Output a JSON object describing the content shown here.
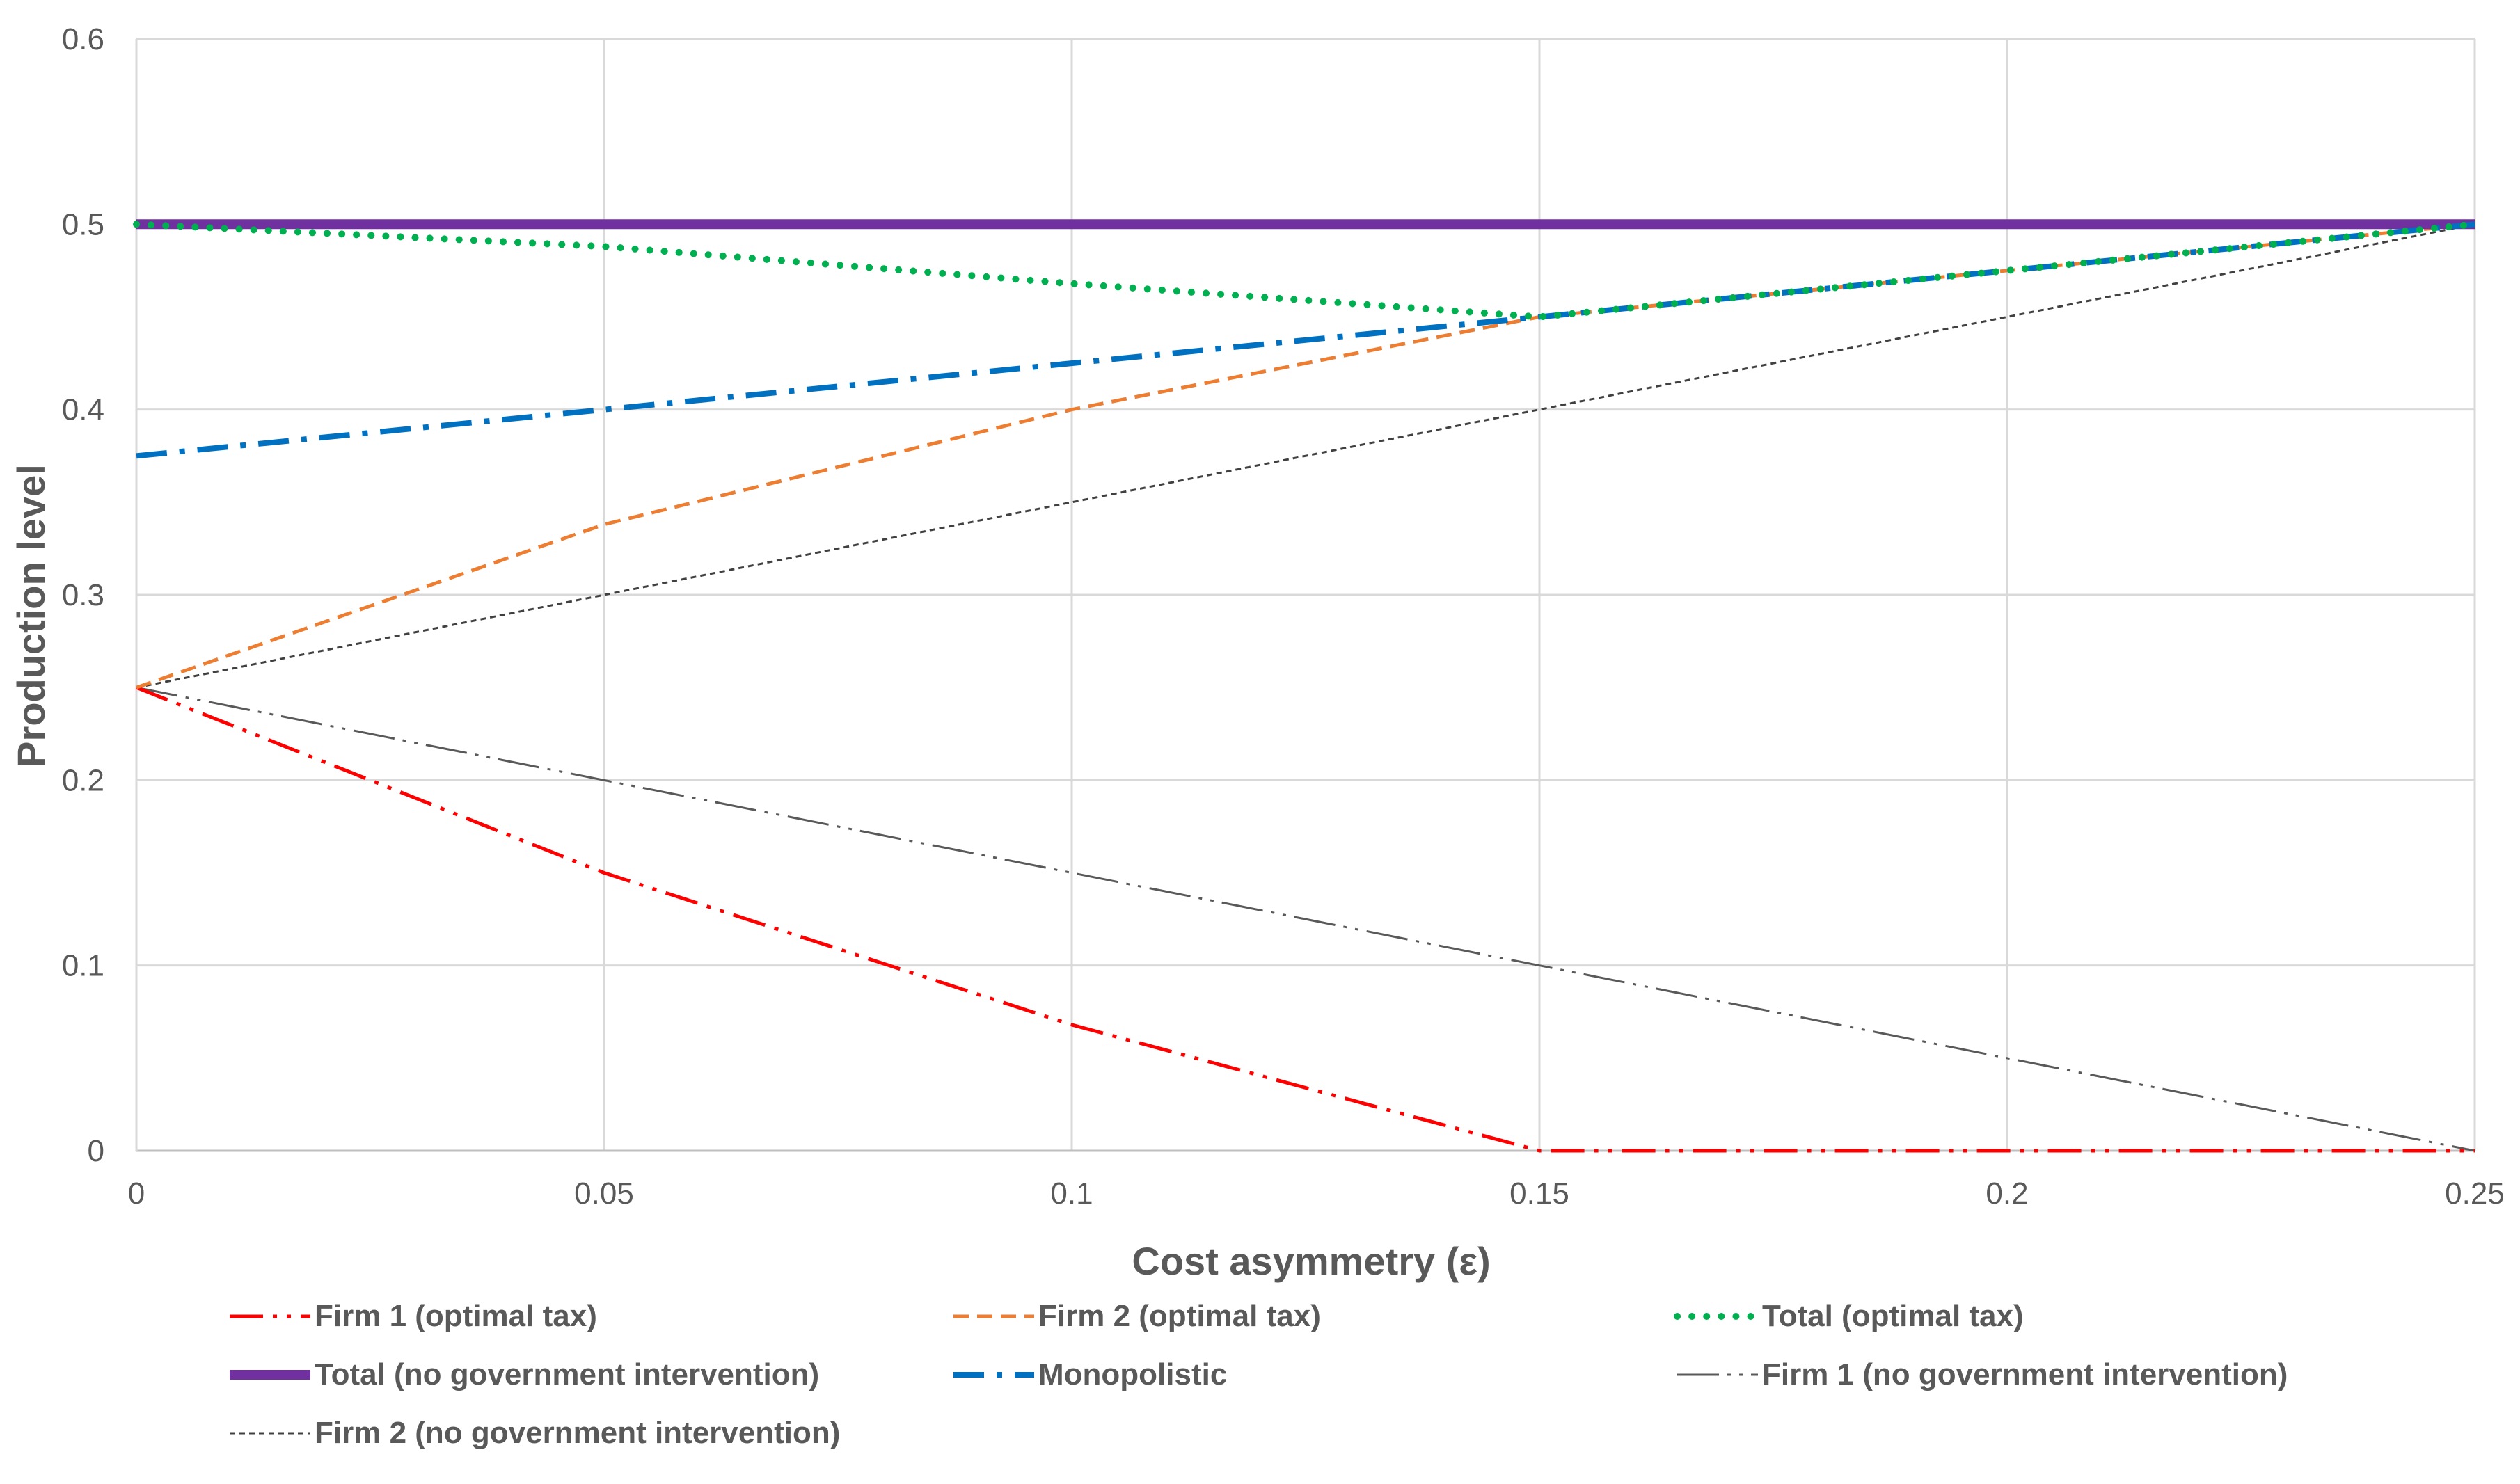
{
  "chart_data": {
    "type": "line",
    "title": "",
    "xlabel": "Cost asymmetry (ε)",
    "ylabel": "Production level",
    "xlim": [
      0,
      0.25
    ],
    "ylim": [
      0,
      0.6
    ],
    "x_ticks": [
      0,
      0.05,
      0.1,
      0.15,
      0.2,
      0.25
    ],
    "x_tick_labels": [
      "0",
      "0.05",
      "0.1",
      "0.15",
      "0.2",
      "0.25"
    ],
    "y_ticks": [
      0,
      0.1,
      0.2,
      0.3,
      0.4,
      0.5,
      0.6
    ],
    "y_tick_labels": [
      "0",
      "0.1",
      "0.2",
      "0.3",
      "0.4",
      "0.5",
      "0.6"
    ],
    "grid": true,
    "legend_position": "bottom",
    "series": [
      {
        "name": "Firm 1 (optimal tax)",
        "color": "#ff0000",
        "style": "dash-dot-dot",
        "x": [
          0,
          0.05,
          0.1,
          0.15,
          0.2,
          0.25
        ],
        "y": [
          0.25,
          0.15,
          0.068,
          0,
          0,
          0
        ]
      },
      {
        "name": "Firm 2 (optimal tax)",
        "color": "#ed7d31",
        "style": "dashed",
        "x": [
          0,
          0.05,
          0.1,
          0.15,
          0.2,
          0.25
        ],
        "y": [
          0.25,
          0.338,
          0.4,
          0.45,
          0.475,
          0.5
        ]
      },
      {
        "name": "Total (optimal tax)",
        "color": "#00b050",
        "style": "dotted",
        "x": [
          0,
          0.05,
          0.1,
          0.15,
          0.2,
          0.25
        ],
        "y": [
          0.5,
          0.488,
          0.468,
          0.45,
          0.475,
          0.5
        ]
      },
      {
        "name": "Total (no government intervention)",
        "color": "#7030a0",
        "style": "solid",
        "x": [
          0,
          0.25
        ],
        "y": [
          0.5,
          0.5
        ]
      },
      {
        "name": "Monopolistic",
        "color": "#0070c0",
        "style": "dash-dot",
        "x": [
          0,
          0.25
        ],
        "y": [
          0.375,
          0.5
        ]
      },
      {
        "name": "Firm 1 (no government intervention)",
        "color": "#595959",
        "style": "long-dash-dot-dot",
        "x": [
          0,
          0.25
        ],
        "y": [
          0.25,
          0
        ]
      },
      {
        "name": "Firm 2 (no government intervention)",
        "color": "#404040",
        "style": "short-dash",
        "x": [
          0,
          0.25
        ],
        "y": [
          0.25,
          0.5
        ]
      }
    ]
  }
}
